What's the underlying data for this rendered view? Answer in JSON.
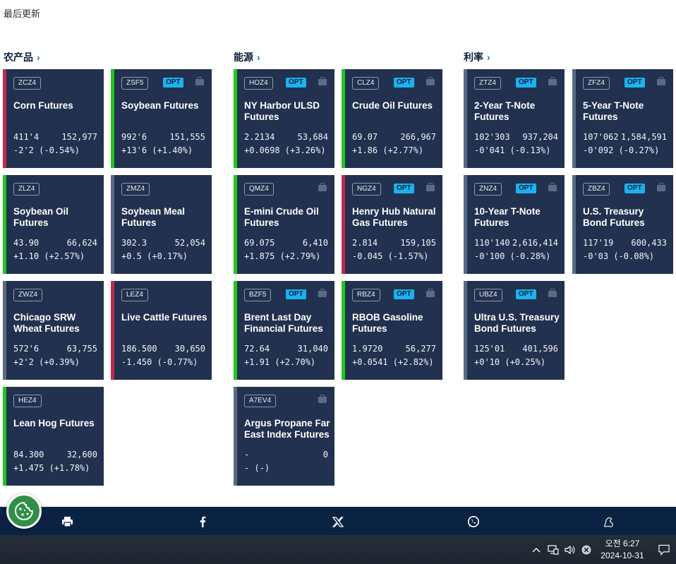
{
  "last_updated": "最后更新",
  "sections": [
    {
      "title": "农产品"
    },
    {
      "title": "能源"
    },
    {
      "title": "利率"
    }
  ],
  "colors": {
    "up": "#22c520",
    "down": "#c0294e",
    "flat": "#5a6a82",
    "card_bg": "#22314f",
    "opt_badge": "#1ab2f0"
  },
  "cards": [
    {
      "code": "ZCZ4",
      "opt": "",
      "name": "Corn Futures",
      "price": "411'4",
      "volume": "152,977",
      "change": "-2'2 (-0.54%)",
      "trend": "down"
    },
    {
      "code": "ZSF5",
      "opt": "OPT",
      "name": "Soybean Futures",
      "price": "992'6",
      "volume": "151,555",
      "change": "+13'6 (+1.40%)",
      "trend": "up"
    },
    {
      "code": "ZLZ4",
      "opt": "",
      "name": "Soybean Oil Futures",
      "price": "43.90",
      "volume": "66,624",
      "change": "+1.10 (+2.57%)",
      "trend": "up"
    },
    {
      "code": "ZMZ4",
      "opt": "",
      "name": "Soybean Meal Futures",
      "price": "302.3",
      "volume": "52,054",
      "change": "+0.5 (+0.17%)",
      "trend": "flat"
    },
    {
      "code": "ZWZ4",
      "opt": "",
      "name": "Chicago SRW Wheat Futures",
      "price": "572'6",
      "volume": "63,755",
      "change": "+2'2 (+0.39%)",
      "trend": "flat"
    },
    {
      "code": "LEZ4",
      "opt": "",
      "name": "Live Cattle Futures",
      "price": "186.500",
      "volume": "30,650",
      "change": "-1.450 (-0.77%)",
      "trend": "down"
    },
    {
      "code": "HEZ4",
      "opt": "",
      "name": "Lean Hog Futures",
      "price": "84.300",
      "volume": "32,600",
      "change": "+1.475 (+1.78%)",
      "trend": "up"
    },
    {
      "code": "HOZ4",
      "opt": "OPT",
      "name": "NY Harbor ULSD Futures",
      "price": "2.2134",
      "volume": "53,684",
      "change": "+0.0698 (+3.26%)",
      "trend": "up"
    },
    {
      "code": "CLZ4",
      "opt": "OPT",
      "name": "Crude Oil Futures",
      "price": "69.07",
      "volume": "266,967",
      "change": "+1.86 (+2.77%)",
      "trend": "up"
    },
    {
      "code": "QMZ4",
      "opt": "",
      "name": "E-mini Crude Oil Futures",
      "price": "69.075",
      "volume": "6,410",
      "change": "+1.875 (+2.79%)",
      "trend": "up"
    },
    {
      "code": "NGZ4",
      "opt": "OPT",
      "name": "Henry Hub Natural Gas Futures",
      "price": "2.814",
      "volume": "159,105",
      "change": "-0.045 (-1.57%)",
      "trend": "down"
    },
    {
      "code": "BZF5",
      "opt": "OPT",
      "name": "Brent Last Day Financial Futures",
      "price": "72.64",
      "volume": "31,040",
      "change": "+1.91 (+2.70%)",
      "trend": "up"
    },
    {
      "code": "RBZ4",
      "opt": "OPT",
      "name": "RBOB Gasoline Futures",
      "price": "1.9720",
      "volume": "56,277",
      "change": "+0.0541 (+2.82%)",
      "trend": "up"
    },
    {
      "code": "A7EV4",
      "opt": "",
      "name": "Argus Propane Far East Index Futures",
      "price": "-",
      "volume": "0",
      "change": "- (-)",
      "trend": "flat"
    },
    {
      "code": "ZTZ4",
      "opt": "OPT",
      "name": "2-Year T-Note Futures",
      "price": "102'303",
      "volume": "937,204",
      "change": "-0'041 (-0.13%)",
      "trend": "flat"
    },
    {
      "code": "ZFZ4",
      "opt": "OPT",
      "name": "5-Year T-Note Futures",
      "price": "107'062",
      "volume": "1,584,591",
      "change": "-0'092 (-0.27%)",
      "trend": "flat"
    },
    {
      "code": "ZNZ4",
      "opt": "OPT",
      "name": "10-Year T-Note Futures",
      "price": "110'140",
      "volume": "2,616,414",
      "change": "-0'100 (-0.28%)",
      "trend": "flat"
    },
    {
      "code": "ZBZ4",
      "opt": "OPT",
      "name": "U.S. Treasury Bond Futures",
      "price": "117'19",
      "volume": "600,433",
      "change": "-0'03 (-0.08%)",
      "trend": "flat"
    },
    {
      "code": "UBZ4",
      "opt": "OPT",
      "name": "Ultra U.S. Treasury Bond Futures",
      "price": "125'01",
      "volume": "401,596",
      "change": "+0'10 (+0.25%)",
      "trend": "flat"
    }
  ],
  "share_bar": {
    "icons": [
      "print-icon",
      "facebook-icon",
      "x-icon",
      "whatsapp-icon",
      "wechat-icon"
    ]
  },
  "cookie_button": {
    "icon": "cookie-icon"
  },
  "taskbar": {
    "time": "오전 6:27",
    "date": "2024-10-31",
    "icons": [
      "chevron-up-icon",
      "network-icon",
      "volume-icon",
      "close-circle-icon",
      "notification-icon"
    ]
  }
}
